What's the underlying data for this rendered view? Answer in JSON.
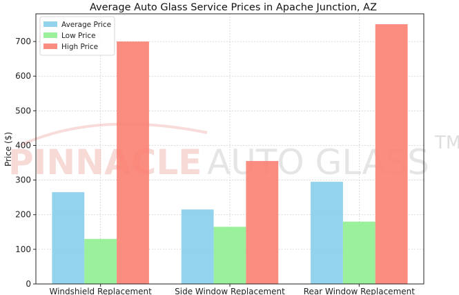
{
  "chart_data": {
    "type": "bar",
    "title": "Average Auto Glass Service Prices in Apache Junction, AZ",
    "xlabel": "",
    "ylabel": "Price ($)",
    "categories": [
      "Windshield Replacement",
      "Side Window Replacement",
      "Rear Window Replacement"
    ],
    "series": [
      {
        "name": "Average Price",
        "color": "#87ceeb",
        "values": [
          265,
          215,
          295
        ]
      },
      {
        "name": "Low Price",
        "color": "#90ee90",
        "values": [
          130,
          165,
          180
        ]
      },
      {
        "name": "High Price",
        "color": "#fa8072",
        "values": [
          700,
          355,
          750
        ]
      }
    ],
    "ylim": [
      0,
      780
    ],
    "yticks": [
      0,
      100,
      200,
      300,
      400,
      500,
      600,
      700
    ],
    "grid": true,
    "legend_position": "top-left"
  },
  "watermark": {
    "brand_bold": "PINNACLE",
    "brand_light": "AUTO GLASS",
    "trademark": "TM"
  }
}
